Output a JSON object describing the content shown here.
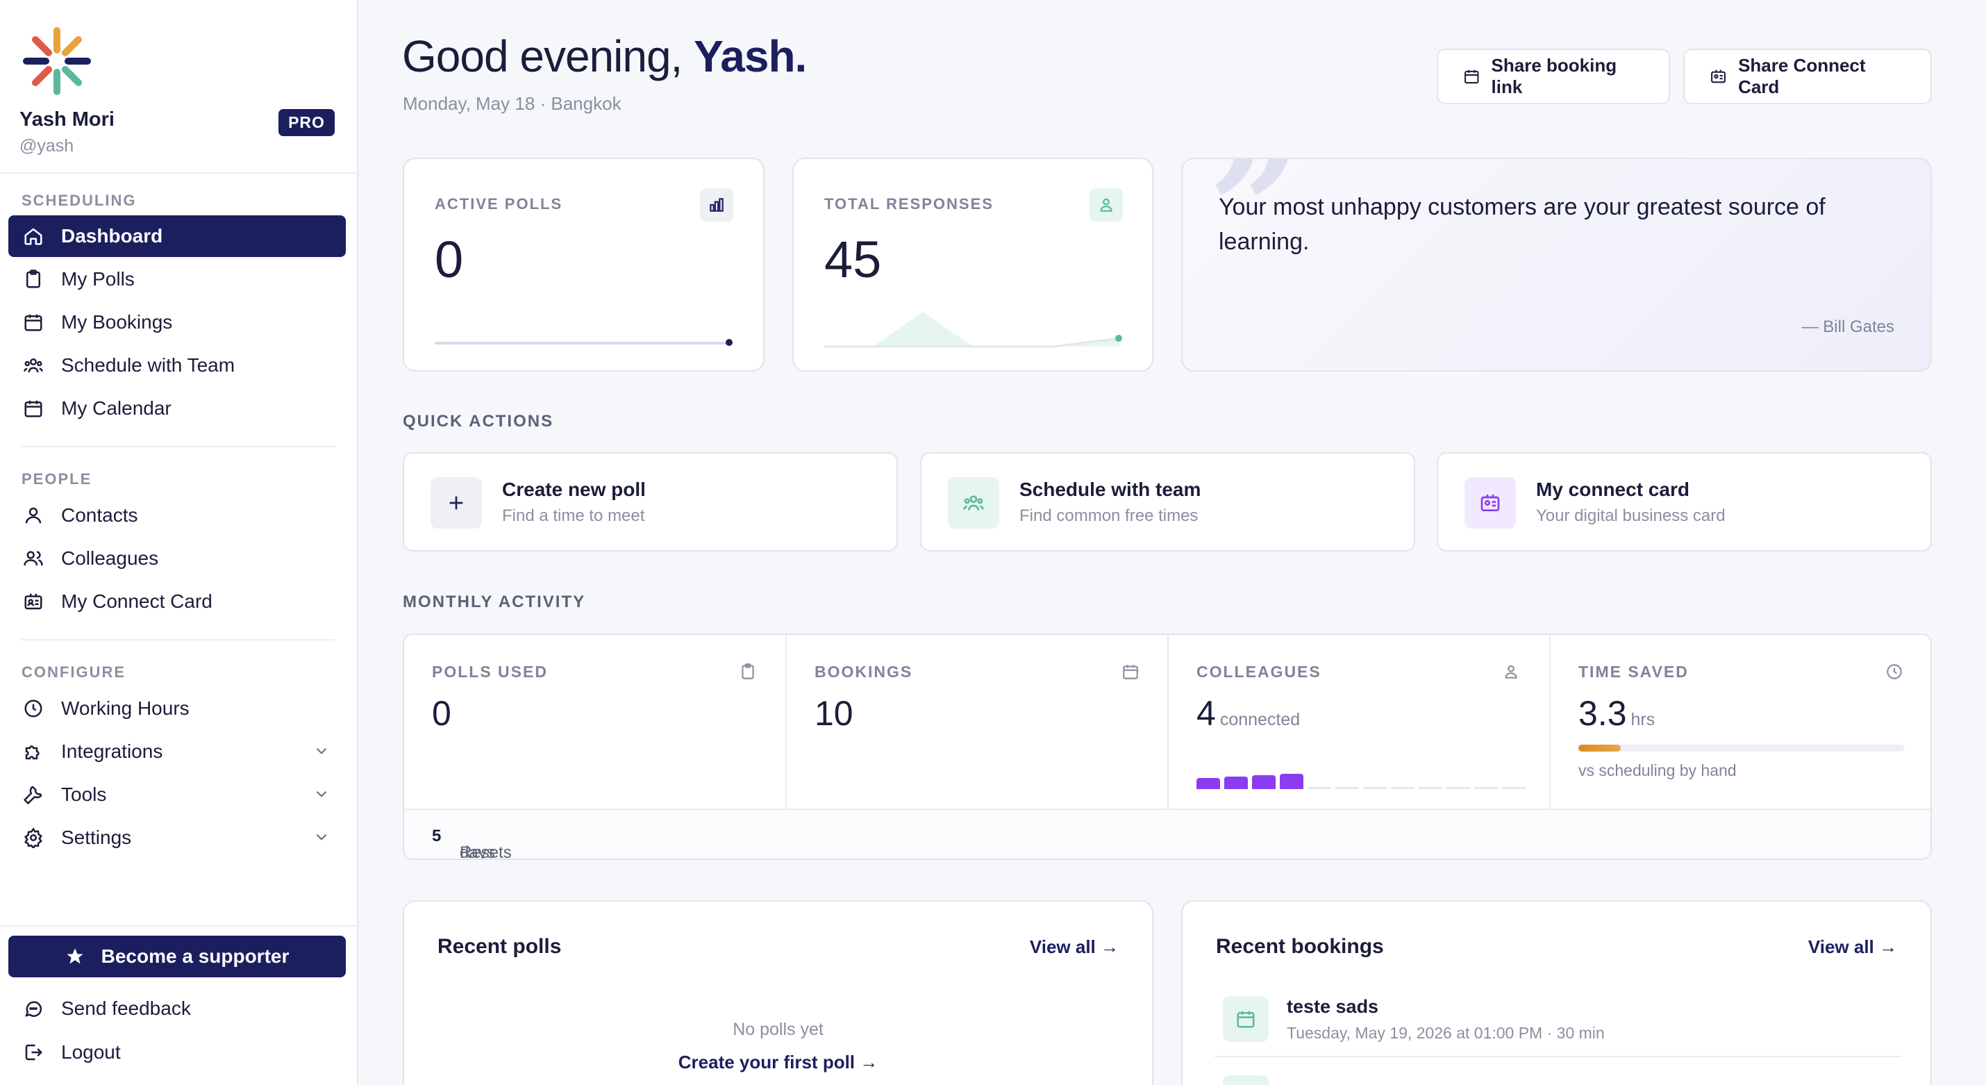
{
  "sidebar": {
    "user": {
      "name": "Yash Mori",
      "handle": "@yash",
      "badge": "PRO"
    },
    "sections": {
      "scheduling": "SCHEDULING",
      "people": "PEOPLE",
      "configure": "CONFIGURE"
    },
    "items": {
      "dashboard": "Dashboard",
      "my_polls": "My Polls",
      "my_bookings": "My Bookings",
      "schedule_with_team": "Schedule with Team",
      "my_calendar": "My Calendar",
      "contacts": "Contacts",
      "colleagues": "Colleagues",
      "my_connect_card": "My Connect Card",
      "working_hours": "Working Hours",
      "integrations": "Integrations",
      "tools": "Tools",
      "settings": "Settings"
    },
    "supporter_label": "Become a supporter",
    "feedback_label": "Send feedback",
    "logout_label": "Logout"
  },
  "header": {
    "greeting": "Good evening, ",
    "name": "Yash.",
    "subtitle": "Monday, May 18 · Bangkok",
    "share_booking": "Share booking link",
    "share_card": "Share Connect Card"
  },
  "stats": {
    "active_polls": {
      "label": "ACTIVE POLLS",
      "value": "0"
    },
    "total_responses": {
      "label": "TOTAL RESPONSES",
      "value": "45"
    }
  },
  "quote": {
    "text": "Your most unhappy customers are your greatest source of learning.",
    "author": "— Bill Gates"
  },
  "quick_actions": {
    "title": "QUICK ACTIONS",
    "items": [
      {
        "title": "Create new poll",
        "subtitle": "Find a time to meet"
      },
      {
        "title": "Schedule with team",
        "subtitle": "Find common free times"
      },
      {
        "title": "My connect card",
        "subtitle": "Your digital business card"
      }
    ]
  },
  "monthly": {
    "title": "MONTHLY ACTIVITY",
    "polls_used": {
      "label": "POLLS USED",
      "value": "0"
    },
    "bookings": {
      "label": "BOOKINGS",
      "value": "10"
    },
    "colleagues": {
      "label": "COLLEAGUES",
      "value": "4",
      "unit": "connected",
      "filled_segments": 4,
      "total_segments": 12
    },
    "time_saved": {
      "label": "TIME SAVED",
      "value": "3.3",
      "unit": "hrs",
      "note": "vs scheduling by hand",
      "progress": 0.13
    },
    "footer_prefix": "Resets in ",
    "footer_days": "5",
    "footer_suffix": " days"
  },
  "recent_polls": {
    "title": "Recent polls",
    "view_all": "View all →",
    "empty": "No polls yet",
    "create_link": "Create your first poll →"
  },
  "recent_bookings": {
    "title": "Recent bookings",
    "view_all": "View all →",
    "items": [
      {
        "title": "teste sads",
        "meta": "Tuesday, May 19, 2026 at 01:00 PM · 30 min"
      }
    ]
  },
  "colors": {
    "primary": "#1c1f5e",
    "accent_green": "#5cb89a",
    "accent_purple": "#8a3cf0",
    "accent_orange": "#e0962f"
  }
}
